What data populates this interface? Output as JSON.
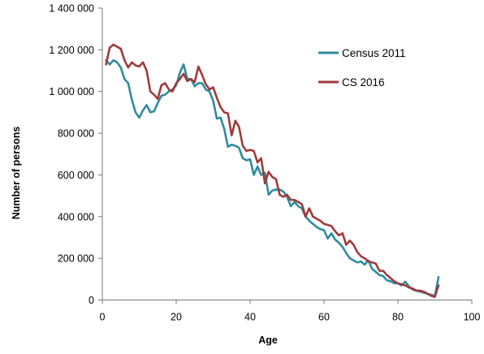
{
  "chart_data": {
    "type": "line",
    "xlabel": "Age",
    "ylabel": "Number of persons",
    "xlim": [
      0,
      100
    ],
    "ylim": [
      0,
      1400000
    ],
    "x_ticks": [
      0,
      20,
      40,
      60,
      80,
      100
    ],
    "x_tick_labels": [
      "0",
      "20",
      "40",
      "60",
      "80",
      "100"
    ],
    "y_ticks": [
      0,
      200000,
      400000,
      600000,
      800000,
      1000000,
      1200000,
      1400000
    ],
    "y_tick_labels": [
      "0",
      "200 000",
      "400 000",
      "600 000",
      "800 000",
      "1 000 000",
      "1 200 000",
      "1 400 000"
    ],
    "grid": false,
    "legend": "right",
    "x": [
      1,
      2,
      3,
      4,
      5,
      6,
      7,
      8,
      9,
      10,
      11,
      12,
      13,
      14,
      15,
      16,
      17,
      18,
      19,
      20,
      21,
      22,
      23,
      24,
      25,
      26,
      27,
      28,
      29,
      30,
      31,
      32,
      33,
      34,
      35,
      36,
      37,
      38,
      39,
      40,
      41,
      42,
      43,
      44,
      45,
      46,
      47,
      48,
      49,
      50,
      51,
      52,
      53,
      54,
      55,
      56,
      57,
      58,
      59,
      60,
      61,
      62,
      63,
      64,
      65,
      66,
      67,
      68,
      69,
      70,
      71,
      72,
      73,
      74,
      75,
      76,
      77,
      78,
      79,
      80,
      81,
      82,
      83,
      84,
      85,
      86,
      87,
      88,
      89,
      90,
      91
    ],
    "series": [
      {
        "name": "Census 2011",
        "color": "#2E8CA0",
        "values": [
          1150000,
          1130000,
          1150000,
          1140000,
          1115000,
          1060000,
          1040000,
          960000,
          900000,
          875000,
          910000,
          935000,
          900000,
          905000,
          945000,
          980000,
          985000,
          1000000,
          1010000,
          1030000,
          1090000,
          1130000,
          1060000,
          1060000,
          1025000,
          1040000,
          1040000,
          1010000,
          1000000,
          955000,
          870000,
          875000,
          820000,
          735000,
          745000,
          740000,
          730000,
          680000,
          670000,
          675000,
          600000,
          640000,
          600000,
          610000,
          505000,
          525000,
          530000,
          530000,
          520000,
          495000,
          450000,
          470000,
          450000,
          440000,
          400000,
          380000,
          365000,
          350000,
          340000,
          335000,
          295000,
          320000,
          290000,
          275000,
          255000,
          225000,
          200000,
          190000,
          180000,
          185000,
          170000,
          190000,
          150000,
          135000,
          120000,
          115000,
          95000,
          90000,
          80000,
          80000,
          70000,
          88000,
          65000,
          50000,
          45000,
          40000,
          35000,
          30000,
          25000,
          20000,
          110000
        ]
      },
      {
        "name": "CS 2016",
        "color": "#A03A3A",
        "values": [
          1130000,
          1210000,
          1225000,
          1215000,
          1205000,
          1150000,
          1115000,
          1140000,
          1125000,
          1120000,
          1140000,
          1100000,
          1000000,
          985000,
          965000,
          1030000,
          1040000,
          1010000,
          1000000,
          1040000,
          1060000,
          1085000,
          1050000,
          1060000,
          1045000,
          1120000,
          1080000,
          1035000,
          1010000,
          1020000,
          970000,
          925000,
          900000,
          895000,
          790000,
          860000,
          830000,
          740000,
          715000,
          720000,
          715000,
          660000,
          680000,
          560000,
          615000,
          590000,
          580000,
          505000,
          495000,
          505000,
          480000,
          480000,
          470000,
          460000,
          400000,
          440000,
          400000,
          390000,
          380000,
          365000,
          360000,
          355000,
          330000,
          310000,
          320000,
          265000,
          285000,
          265000,
          230000,
          210000,
          200000,
          185000,
          180000,
          175000,
          140000,
          140000,
          120000,
          105000,
          90000,
          80000,
          75000,
          70000,
          60000,
          55000,
          45000,
          45000,
          40000,
          30000,
          20000,
          15000,
          70000
        ]
      }
    ]
  }
}
